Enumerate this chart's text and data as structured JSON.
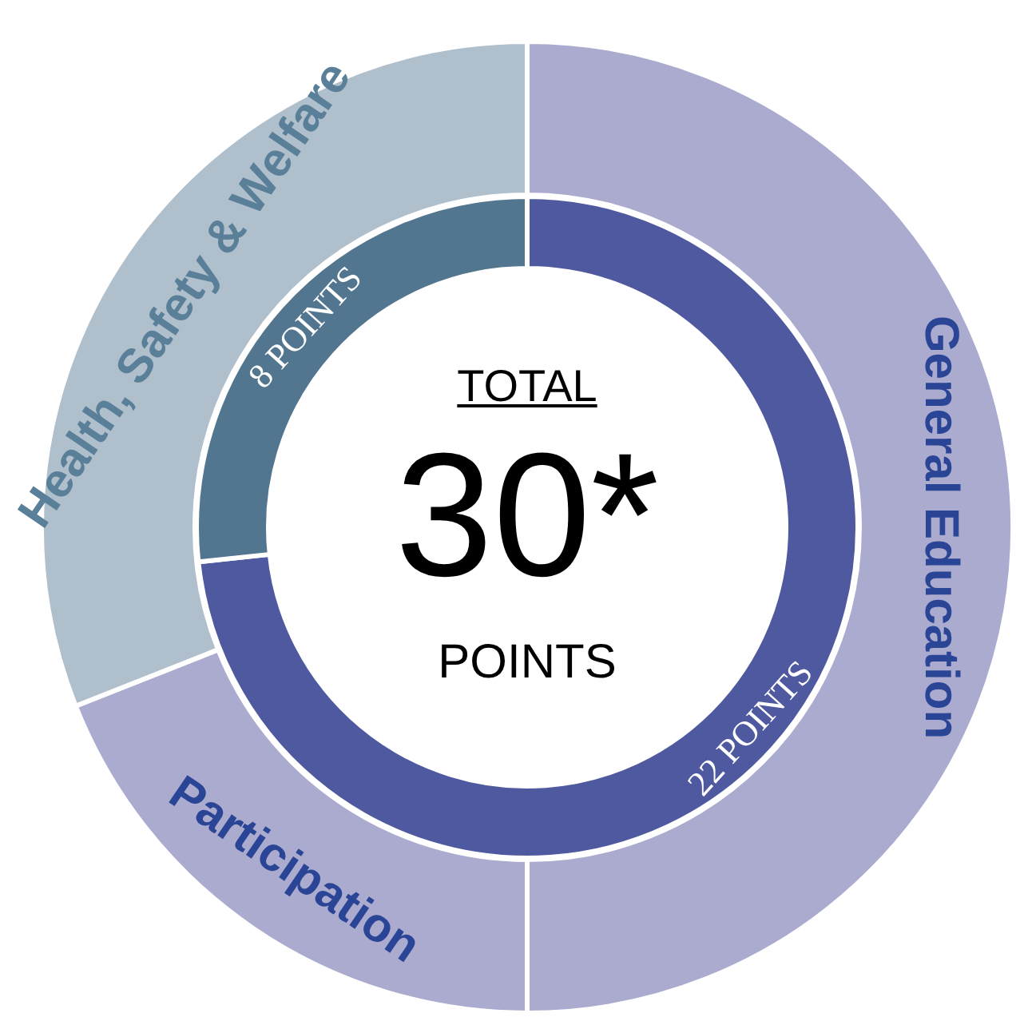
{
  "chart_data": [
    {
      "type": "donut",
      "categories": [
        "General Education",
        "Participation",
        "Health, Safety & Welfare"
      ],
      "values": [
        50,
        19,
        31
      ],
      "colors": [
        "#abaacf",
        "#abaacf",
        "#b0bfcc"
      ],
      "legend": false
    },
    {
      "type": "donut",
      "categories": [
        null,
        null
      ],
      "values": [
        22,
        8
      ],
      "colors": [
        "#4f599f",
        "#52768f"
      ],
      "value_labels": [
        "22 POINTS",
        "8 POINTS"
      ],
      "annotations": [
        "TOTAL",
        "30*",
        "POINTS"
      ],
      "legend": false
    }
  ]
}
